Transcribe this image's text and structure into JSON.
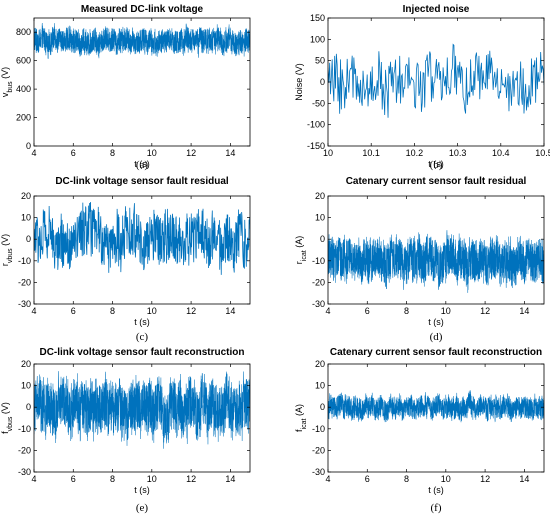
{
  "figure": {
    "trace_color": "#0072BD"
  },
  "chart_data": [
    {
      "id": "a",
      "type": "line",
      "caption": "(a)",
      "title": "Measured DC-link voltage",
      "xlabel": "t (s)",
      "ylabel": "v",
      "ylabel_sub": "bus",
      "ylabel_unit": " (V)",
      "xlim": [
        4,
        15
      ],
      "ylim": [
        0,
        900
      ],
      "xticks": [
        4,
        6,
        8,
        10,
        12,
        14
      ],
      "yticks": [
        0,
        200,
        400,
        600,
        800
      ],
      "grid": false,
      "series": [
        {
          "band": {
            "center": 740,
            "min": 600,
            "max": 865
          },
          "samples": 2200
        }
      ]
    },
    {
      "id": "b",
      "type": "line",
      "caption": "(b)",
      "title": "Injected noise",
      "xlabel": "t (s)",
      "ylabel": "Noise (V)",
      "ylabel_sub": "",
      "ylabel_unit": "",
      "xlim": [
        10,
        10.5
      ],
      "ylim": [
        -150,
        150
      ],
      "xticks": [
        10,
        10.1,
        10.2,
        10.3,
        10.4,
        10.5
      ],
      "yticks": [
        -150,
        -100,
        -50,
        0,
        50,
        100,
        150
      ],
      "grid": false,
      "series": [
        {
          "band": {
            "center": 0,
            "min": -100,
            "max": 100
          },
          "samples": 260
        }
      ]
    },
    {
      "id": "c",
      "type": "line",
      "caption": "(c)",
      "title": "DC-link voltage sensor fault residual",
      "xlabel": "t (s)",
      "ylabel": "r",
      "ylabel_sub": "vbus",
      "ylabel_unit": " (V)",
      "xlim": [
        4,
        15
      ],
      "ylim": [
        -30,
        20
      ],
      "xticks": [
        4,
        6,
        8,
        10,
        12,
        14
      ],
      "yticks": [
        -30,
        -20,
        -10,
        0,
        10,
        20
      ],
      "grid": false,
      "series": [
        {
          "band": {
            "center": 0,
            "min": -20,
            "max": 18
          },
          "samples": 700
        }
      ]
    },
    {
      "id": "d",
      "type": "line",
      "caption": "(d)",
      "title": "Catenary current sensor fault residual",
      "xlabel": "t (s)",
      "ylabel": "r",
      "ylabel_sub": "icat",
      "ylabel_unit": " (A)",
      "xlim": [
        4,
        15
      ],
      "ylim": [
        -30,
        20
      ],
      "xticks": [
        4,
        6,
        8,
        10,
        12,
        14
      ],
      "yticks": [
        -30,
        -20,
        -10,
        0,
        10,
        20
      ],
      "grid": false,
      "series": [
        {
          "band": {
            "center": -10,
            "min": -25,
            "max": 5
          },
          "samples": 2200
        }
      ]
    },
    {
      "id": "e",
      "type": "line",
      "caption": "(e)",
      "title": "DC-link voltage sensor fault reconstruction",
      "xlabel": "t (s)",
      "ylabel": "f",
      "ylabel_sub": "vbus",
      "ylabel_unit": " (V)",
      "xlim": [
        4,
        15
      ],
      "ylim": [
        -30,
        20
      ],
      "xticks": [
        4,
        6,
        8,
        10,
        12,
        14
      ],
      "yticks": [
        -30,
        -20,
        -10,
        0,
        10,
        20
      ],
      "grid": false,
      "series": [
        {
          "band": {
            "center": 0,
            "min": -20,
            "max": 18
          },
          "samples": 2200
        }
      ]
    },
    {
      "id": "f",
      "type": "line",
      "caption": "(f)",
      "title": "Catenary current sensor fault reconstruction",
      "xlabel": "t (s)",
      "ylabel": "f",
      "ylabel_sub": "icat",
      "ylabel_unit": " (A)",
      "xlim": [
        4,
        15
      ],
      "ylim": [
        -30,
        20
      ],
      "xticks": [
        4,
        6,
        8,
        10,
        12,
        14
      ],
      "yticks": [
        -30,
        -20,
        -10,
        0,
        10,
        20
      ],
      "grid": false,
      "series": [
        {
          "band": {
            "center": 0,
            "min": -7,
            "max": 9
          },
          "samples": 2200
        }
      ]
    }
  ]
}
